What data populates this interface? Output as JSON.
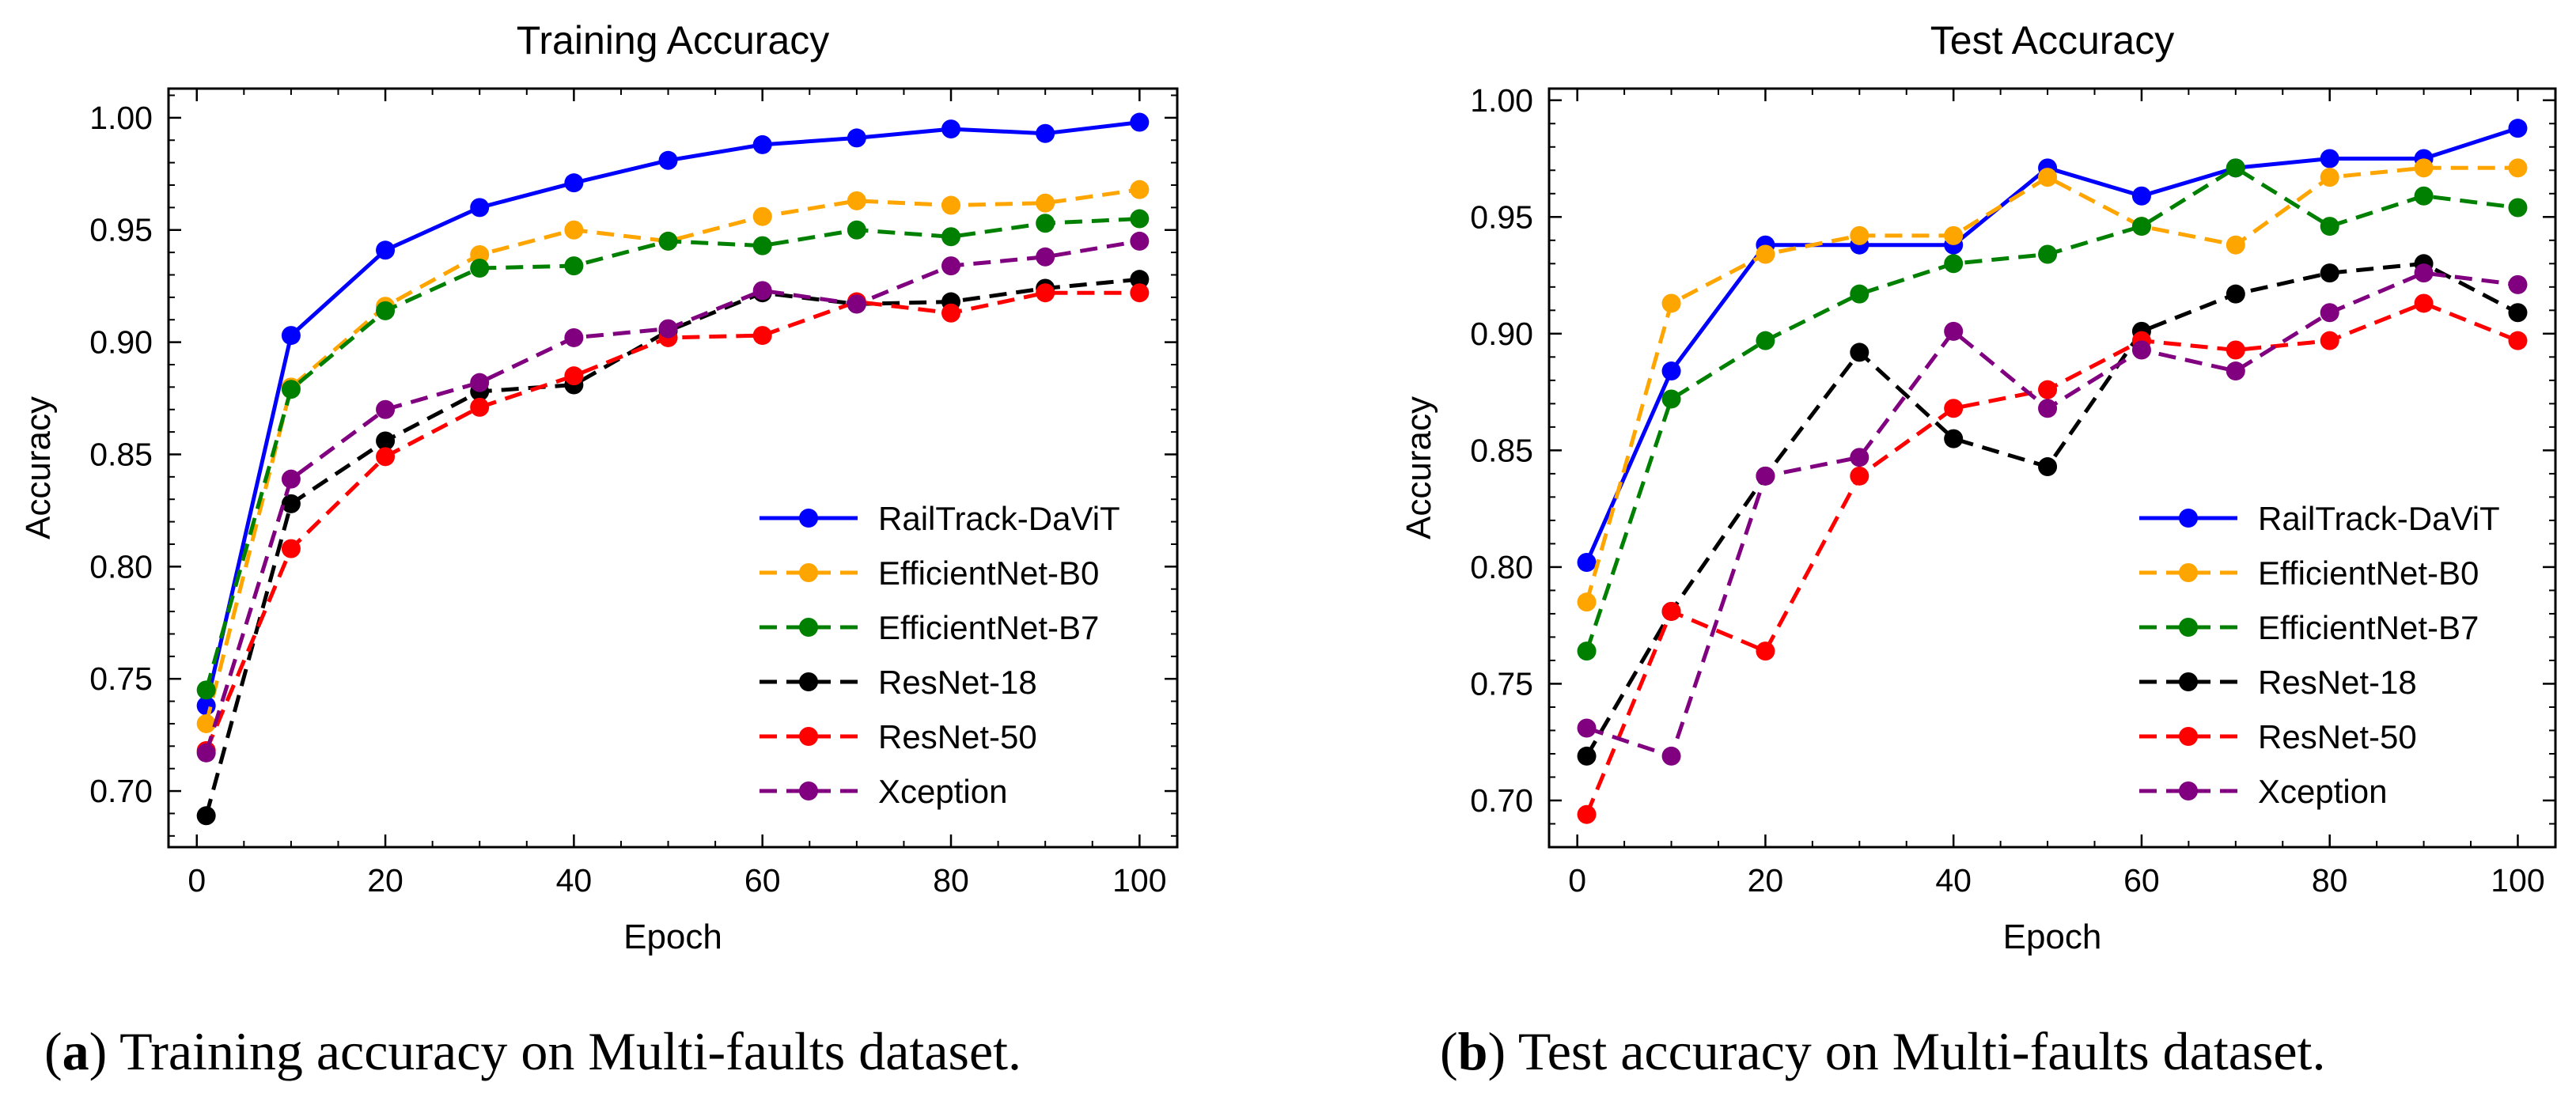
{
  "chart_data": [
    {
      "type": "line",
      "title": "Training Accuracy",
      "xlabel": "Epoch",
      "ylabel": "Accuracy",
      "xlim": [
        -3,
        104
      ],
      "ylim": [
        0.675,
        1.013
      ],
      "xticks": [
        0,
        20,
        40,
        60,
        80,
        100
      ],
      "yticks": [
        0.7,
        0.75,
        0.8,
        0.85,
        0.9,
        0.95,
        1.0
      ],
      "legend_position": "lower-right",
      "x": [
        1,
        10,
        20,
        30,
        40,
        50,
        60,
        70,
        80,
        90,
        100
      ],
      "series": [
        {
          "name": "RailTrack-DaViT",
          "color": "#0000ff",
          "dashed": false,
          "values": [
            0.738,
            0.903,
            0.941,
            0.96,
            0.971,
            0.981,
            0.988,
            0.991,
            0.995,
            0.993,
            0.998
          ]
        },
        {
          "name": "EfficientNet-B0",
          "color": "#ffa500",
          "dashed": true,
          "values": [
            0.73,
            0.88,
            0.916,
            0.939,
            0.95,
            0.945,
            0.956,
            0.963,
            0.961,
            0.962,
            0.968
          ]
        },
        {
          "name": "EfficientNet-B7",
          "color": "#008000",
          "dashed": true,
          "values": [
            0.745,
            0.879,
            0.914,
            0.933,
            0.934,
            0.945,
            0.943,
            0.95,
            0.947,
            0.953,
            0.955
          ]
        },
        {
          "name": "ResNet-18",
          "color": "#000000",
          "dashed": true,
          "values": [
            0.689,
            0.828,
            0.856,
            0.878,
            0.881,
            0.905,
            0.922,
            0.917,
            0.918,
            0.924,
            0.928
          ]
        },
        {
          "name": "ResNet-50",
          "color": "#ff0000",
          "dashed": true,
          "values": [
            0.718,
            0.808,
            0.849,
            0.871,
            0.885,
            0.902,
            0.903,
            0.918,
            0.913,
            0.922,
            0.922
          ]
        },
        {
          "name": "Xception",
          "color": "#800080",
          "dashed": true,
          "values": [
            0.717,
            0.839,
            0.87,
            0.882,
            0.902,
            0.906,
            0.923,
            0.917,
            0.934,
            0.938,
            0.945
          ]
        }
      ]
    },
    {
      "type": "line",
      "title": "Test Accuracy",
      "xlabel": "Epoch",
      "ylabel": "Accuracy",
      "xlim": [
        -3,
        104
      ],
      "ylim": [
        0.68,
        1.005
      ],
      "xticks": [
        0,
        20,
        40,
        60,
        80,
        100
      ],
      "yticks": [
        0.7,
        0.75,
        0.8,
        0.85,
        0.9,
        0.95,
        1.0
      ],
      "legend_position": "lower-right",
      "x": [
        1,
        10,
        20,
        30,
        40,
        50,
        60,
        70,
        80,
        90,
        100
      ],
      "series": [
        {
          "name": "RailTrack-DaViT",
          "color": "#0000ff",
          "dashed": false,
          "values": [
            0.802,
            0.884,
            0.938,
            0.938,
            0.938,
            0.971,
            0.959,
            0.971,
            0.975,
            0.975,
            0.988
          ]
        },
        {
          "name": "EfficientNet-B0",
          "color": "#ffa500",
          "dashed": true,
          "values": [
            0.785,
            0.913,
            0.934,
            0.942,
            0.942,
            0.967,
            0.946,
            0.938,
            0.967,
            0.971,
            0.971
          ]
        },
        {
          "name": "EfficientNet-B7",
          "color": "#008000",
          "dashed": true,
          "values": [
            0.764,
            0.872,
            0.897,
            0.917,
            0.93,
            0.934,
            0.946,
            0.971,
            0.946,
            0.959,
            0.954
          ]
        },
        {
          "name": "ResNet-18",
          "color": "#000000",
          "dashed": true,
          "values": [
            0.719,
            0.781,
            0.839,
            0.892,
            0.855,
            0.843,
            0.901,
            0.917,
            0.926,
            0.93,
            0.909
          ]
        },
        {
          "name": "ResNet-50",
          "color": "#ff0000",
          "dashed": true,
          "values": [
            0.694,
            0.781,
            0.764,
            0.839,
            0.868,
            0.876,
            0.897,
            0.893,
            0.897,
            0.913,
            0.897
          ]
        },
        {
          "name": "Xception",
          "color": "#800080",
          "dashed": true,
          "values": [
            0.731,
            0.719,
            0.839,
            0.847,
            0.901,
            0.868,
            0.893,
            0.884,
            0.909,
            0.926,
            0.921
          ]
        }
      ]
    }
  ],
  "captions": [
    {
      "tag": "a",
      "text": " Training accuracy on Multi-faults dataset."
    },
    {
      "tag": "b",
      "text": " Test accuracy on Multi-faults dataset."
    }
  ]
}
